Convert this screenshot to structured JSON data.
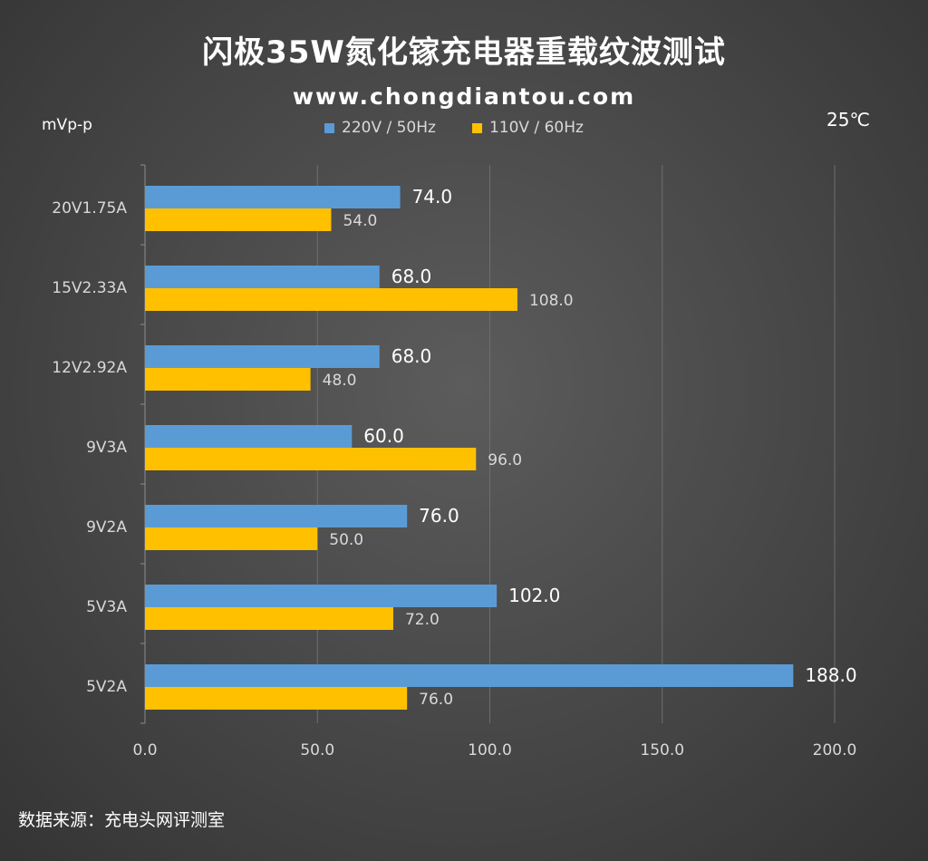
{
  "chart_data": {
    "type": "bar",
    "orientation": "horizontal",
    "title": "闪极35W氮化镓充电器重载纹波测试",
    "subtitle": "www.chongdiantou.com",
    "ylabel": "mVp-p",
    "annotation": "25℃",
    "source": "数据来源：充电头网评测室",
    "categories": [
      "20V1.75A",
      "15V2.33A",
      "12V2.92A",
      "9V3A",
      "9V2A",
      "5V3A",
      "5V2A"
    ],
    "series": [
      {
        "name": "220V / 50Hz",
        "color": "#5b9bd5",
        "values": [
          74.0,
          68.0,
          68.0,
          60.0,
          76.0,
          102.0,
          188.0
        ]
      },
      {
        "name": "110V / 60Hz",
        "color": "#ffc000",
        "values": [
          54.0,
          108.0,
          48.0,
          96.0,
          50.0,
          72.0,
          76.0
        ]
      }
    ],
    "xlim": [
      0,
      200
    ],
    "xticks": [
      "0.0",
      "50.0",
      "100.0",
      "150.0",
      "200.0"
    ],
    "grid": true,
    "legend": "top-center"
  }
}
